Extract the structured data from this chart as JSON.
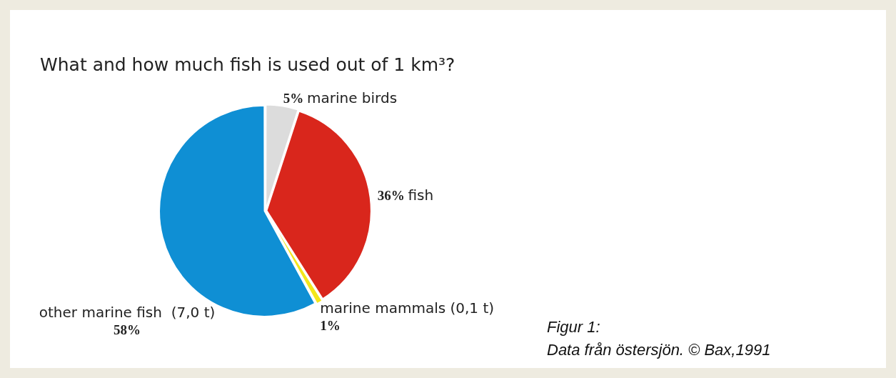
{
  "chart_data": {
    "type": "pie",
    "title": "What and how much fish is used out of 1 km³?",
    "categories": [
      "marine birds",
      "fish",
      "marine mammals (0,1 t)",
      "other marine fish  (7,0 t)"
    ],
    "values": [
      5,
      36,
      1,
      58
    ],
    "colors": [
      "#dcdcdc",
      "#d9261c",
      "#f3e61a",
      "#0f8fd4"
    ],
    "value_labels": [
      "5%",
      "36%",
      "1%",
      "58%"
    ],
    "annotations": [
      "Figur 1:",
      "Data från östersjön. © Bax,1991"
    ]
  }
}
